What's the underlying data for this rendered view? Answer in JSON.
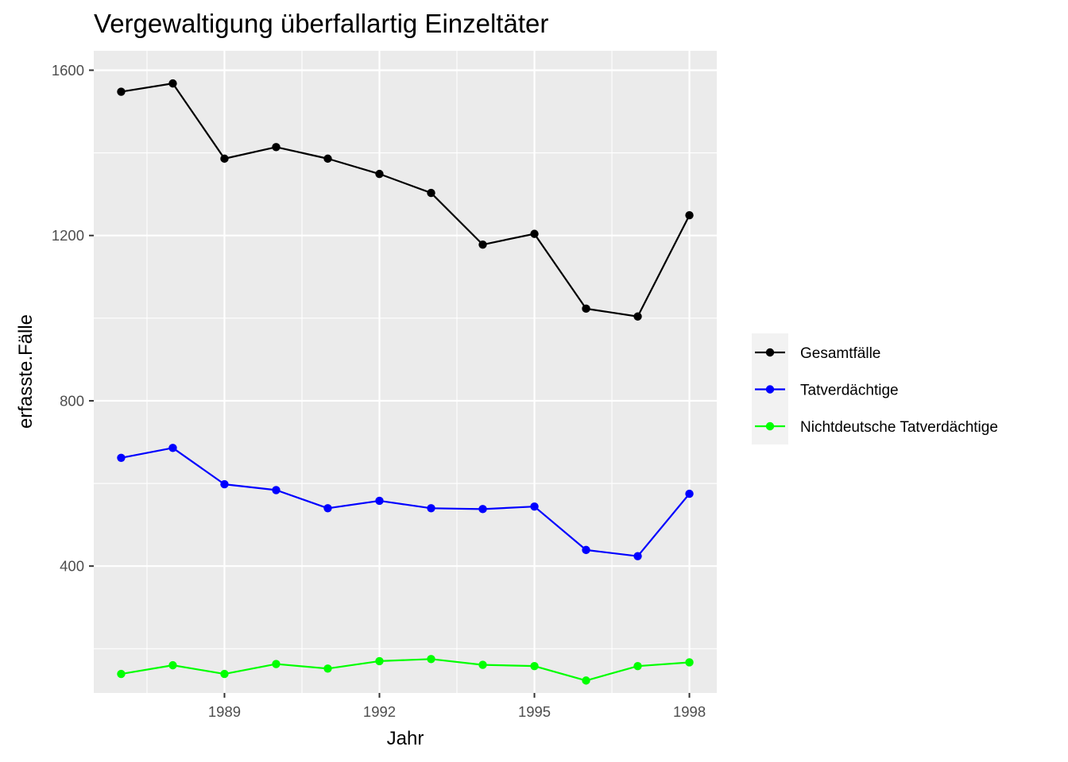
{
  "chart_data": {
    "type": "line",
    "title": "Vergewaltigung überfallartig Einzeltäter",
    "xlabel": "Jahr",
    "ylabel": "erfasste.Fälle",
    "x": [
      1987,
      1988,
      1989,
      1990,
      1991,
      1992,
      1993,
      1994,
      1995,
      1996,
      1997,
      1998
    ],
    "xlim": [
      1986.47,
      1998.53
    ],
    "ylim": [
      93,
      1647
    ],
    "x_ticks": [
      1989,
      1992,
      1995,
      1998
    ],
    "x_tick_labels": [
      "1989",
      "1992",
      "1995",
      "1998"
    ],
    "y_ticks": [
      400,
      800,
      1200,
      1600
    ],
    "y_tick_labels": [
      "400",
      "800",
      "1200",
      "1600"
    ],
    "grid": true,
    "legend_position": "right",
    "series": [
      {
        "name": "Gesamtfälle",
        "color": "#000000",
        "values": [
          1548,
          1568,
          1386,
          1414,
          1386,
          1349,
          1303,
          1178,
          1204,
          1023,
          1004,
          1249
        ]
      },
      {
        "name": "Tatverdächtige",
        "color": "#0000ff",
        "values": [
          662,
          686,
          598,
          584,
          540,
          558,
          540,
          538,
          544,
          439,
          424,
          575
        ]
      },
      {
        "name": "Nichtdeutsche Tatverdächtige",
        "color": "#00ff00",
        "values": [
          139,
          160,
          139,
          163,
          152,
          170,
          175,
          161,
          158,
          123,
          158,
          167
        ]
      }
    ]
  }
}
